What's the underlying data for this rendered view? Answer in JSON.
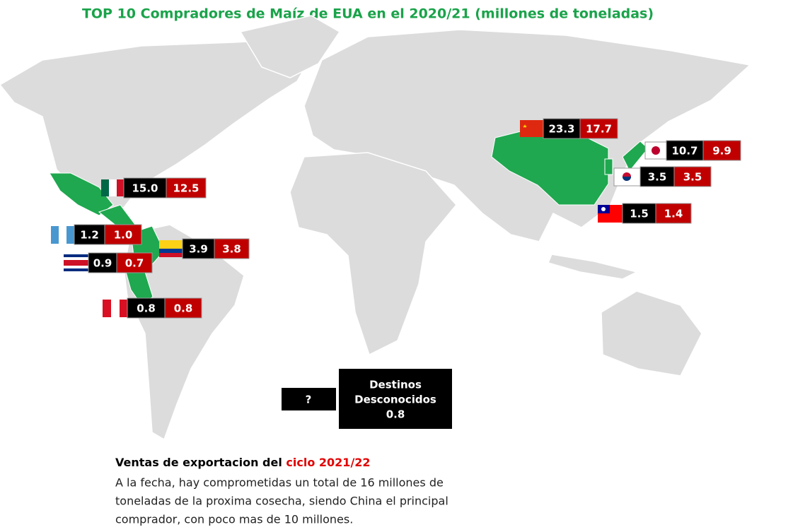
{
  "header": {
    "title": "TOP 10 Compradores de Maíz de EUA en el 2020/21 (millones de toneladas)"
  },
  "buyers": [
    {
      "values": [
        "23.3",
        "17.7"
      ]
    },
    {
      "values": [
        "10.7",
        "9.9"
      ]
    },
    {
      "values": [
        "3.5",
        "3.5"
      ]
    },
    {
      "values": [
        "1.5",
        "1.4"
      ]
    },
    {
      "values": [
        "15.0",
        "12.5"
      ]
    },
    {
      "values": [
        "1.2",
        "1.0"
      ]
    },
    {
      "values": [
        "3.9",
        "3.8"
      ]
    },
    {
      "values": [
        "0.9",
        "0.7"
      ]
    },
    {
      "values": [
        "0.8",
        "0.8"
      ]
    }
  ],
  "unknown": {
    "icon": "?",
    "lines": [
      "Destinos",
      "Desconocidos",
      "0.8"
    ]
  },
  "note": {
    "heading": "Ventas de exportacion del ",
    "heading_highlight": "ciclo 2021/22",
    "lines": [
      "A la fecha, hay comprometidas un total de 16 millones de",
      "toneladas de la proxima cosecha, siendo China el principal",
      "comprador, con poco mas de 10 millones."
    ]
  }
}
